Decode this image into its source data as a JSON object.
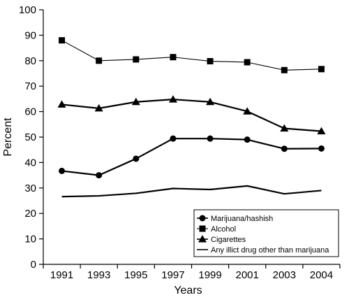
{
  "chart_data": {
    "type": "line",
    "xlabel": "Years",
    "ylabel": "Percent",
    "ylim": [
      0,
      100
    ],
    "yticks": [
      0,
      10,
      20,
      30,
      40,
      50,
      60,
      70,
      80,
      90,
      100
    ],
    "x": [
      "1991",
      "1993",
      "1995",
      "1997",
      "1999",
      "2001",
      "2003",
      "2004"
    ],
    "grid": false,
    "legend_position": "bottom-right",
    "series": [
      {
        "name": "Marijuana/hashish",
        "marker": "circle",
        "stroke_width": "thick",
        "values": [
          36.7,
          35.0,
          41.5,
          49.4,
          49.4,
          49.0,
          45.4,
          45.5
        ]
      },
      {
        "name": "Alcohol",
        "marker": "square",
        "stroke_width": "thin",
        "values": [
          88.0,
          80.0,
          80.5,
          81.4,
          79.8,
          79.4,
          76.3,
          76.7
        ]
      },
      {
        "name": "Cigarettes",
        "marker": "triangle",
        "stroke_width": "thick",
        "values": [
          62.8,
          61.3,
          63.8,
          64.8,
          63.8,
          60.1,
          53.4,
          52.3
        ]
      },
      {
        "name": "Any illict drug other than marijuana",
        "marker": "none",
        "stroke_width": "thick",
        "values": [
          26.6,
          26.9,
          27.9,
          29.8,
          29.4,
          30.8,
          27.7,
          29.0
        ]
      }
    ],
    "colors": {
      "line": "#000000",
      "axis": "#000000",
      "background": "#ffffff"
    }
  }
}
